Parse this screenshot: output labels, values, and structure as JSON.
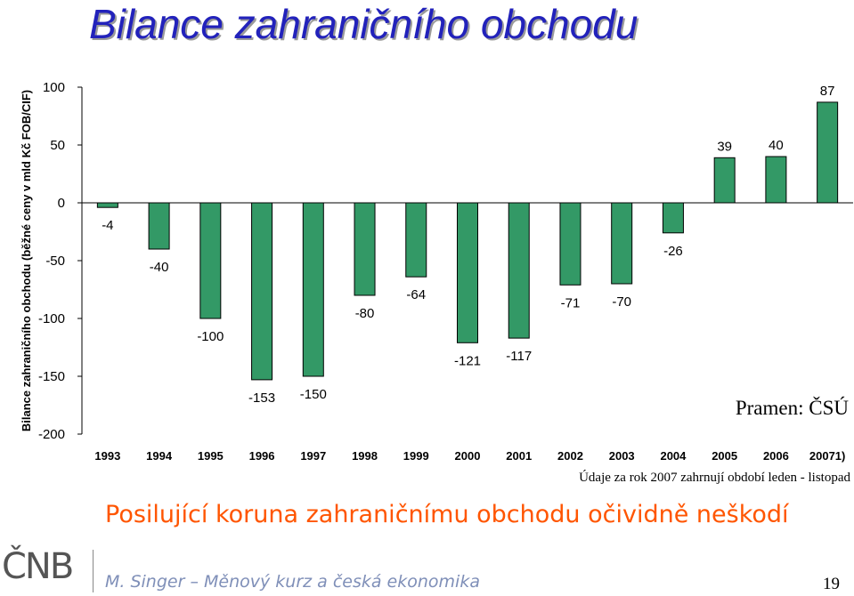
{
  "slide": {
    "title": "Bilance zahraničního obchodu",
    "source": "Pramen: ČSÚ",
    "footnote": "Údaje za rok 2007 zahrnují období leden - listopad",
    "headline": "Posilující koruna zahraničnímu obchodu očividně neškodí",
    "logo": "ČNB",
    "footer": "M. Singer – Měnový kurz a česká ekonomika",
    "page_number": "19"
  },
  "chart_data": {
    "type": "bar",
    "title": "",
    "ylabel": "Bilance zahraničního obchodu (běžné ceny v mld Kč FOB/CIF)",
    "xlabel": "",
    "categories": [
      "1993",
      "1994",
      "1995",
      "1996",
      "1997",
      "1998",
      "1999",
      "2000",
      "2001",
      "2002",
      "2003",
      "2004",
      "2005",
      "2006",
      "20071)"
    ],
    "values": [
      -4,
      -40,
      -100,
      -153,
      -150,
      -80,
      -64,
      -121,
      -117,
      -71,
      -70,
      -26,
      39,
      40,
      87
    ],
    "ylim": [
      -200,
      100
    ],
    "yticks": [
      100,
      50,
      0,
      -50,
      -100,
      -150,
      -200
    ],
    "bar_color": "#339966",
    "grid": false,
    "legend": "none"
  }
}
